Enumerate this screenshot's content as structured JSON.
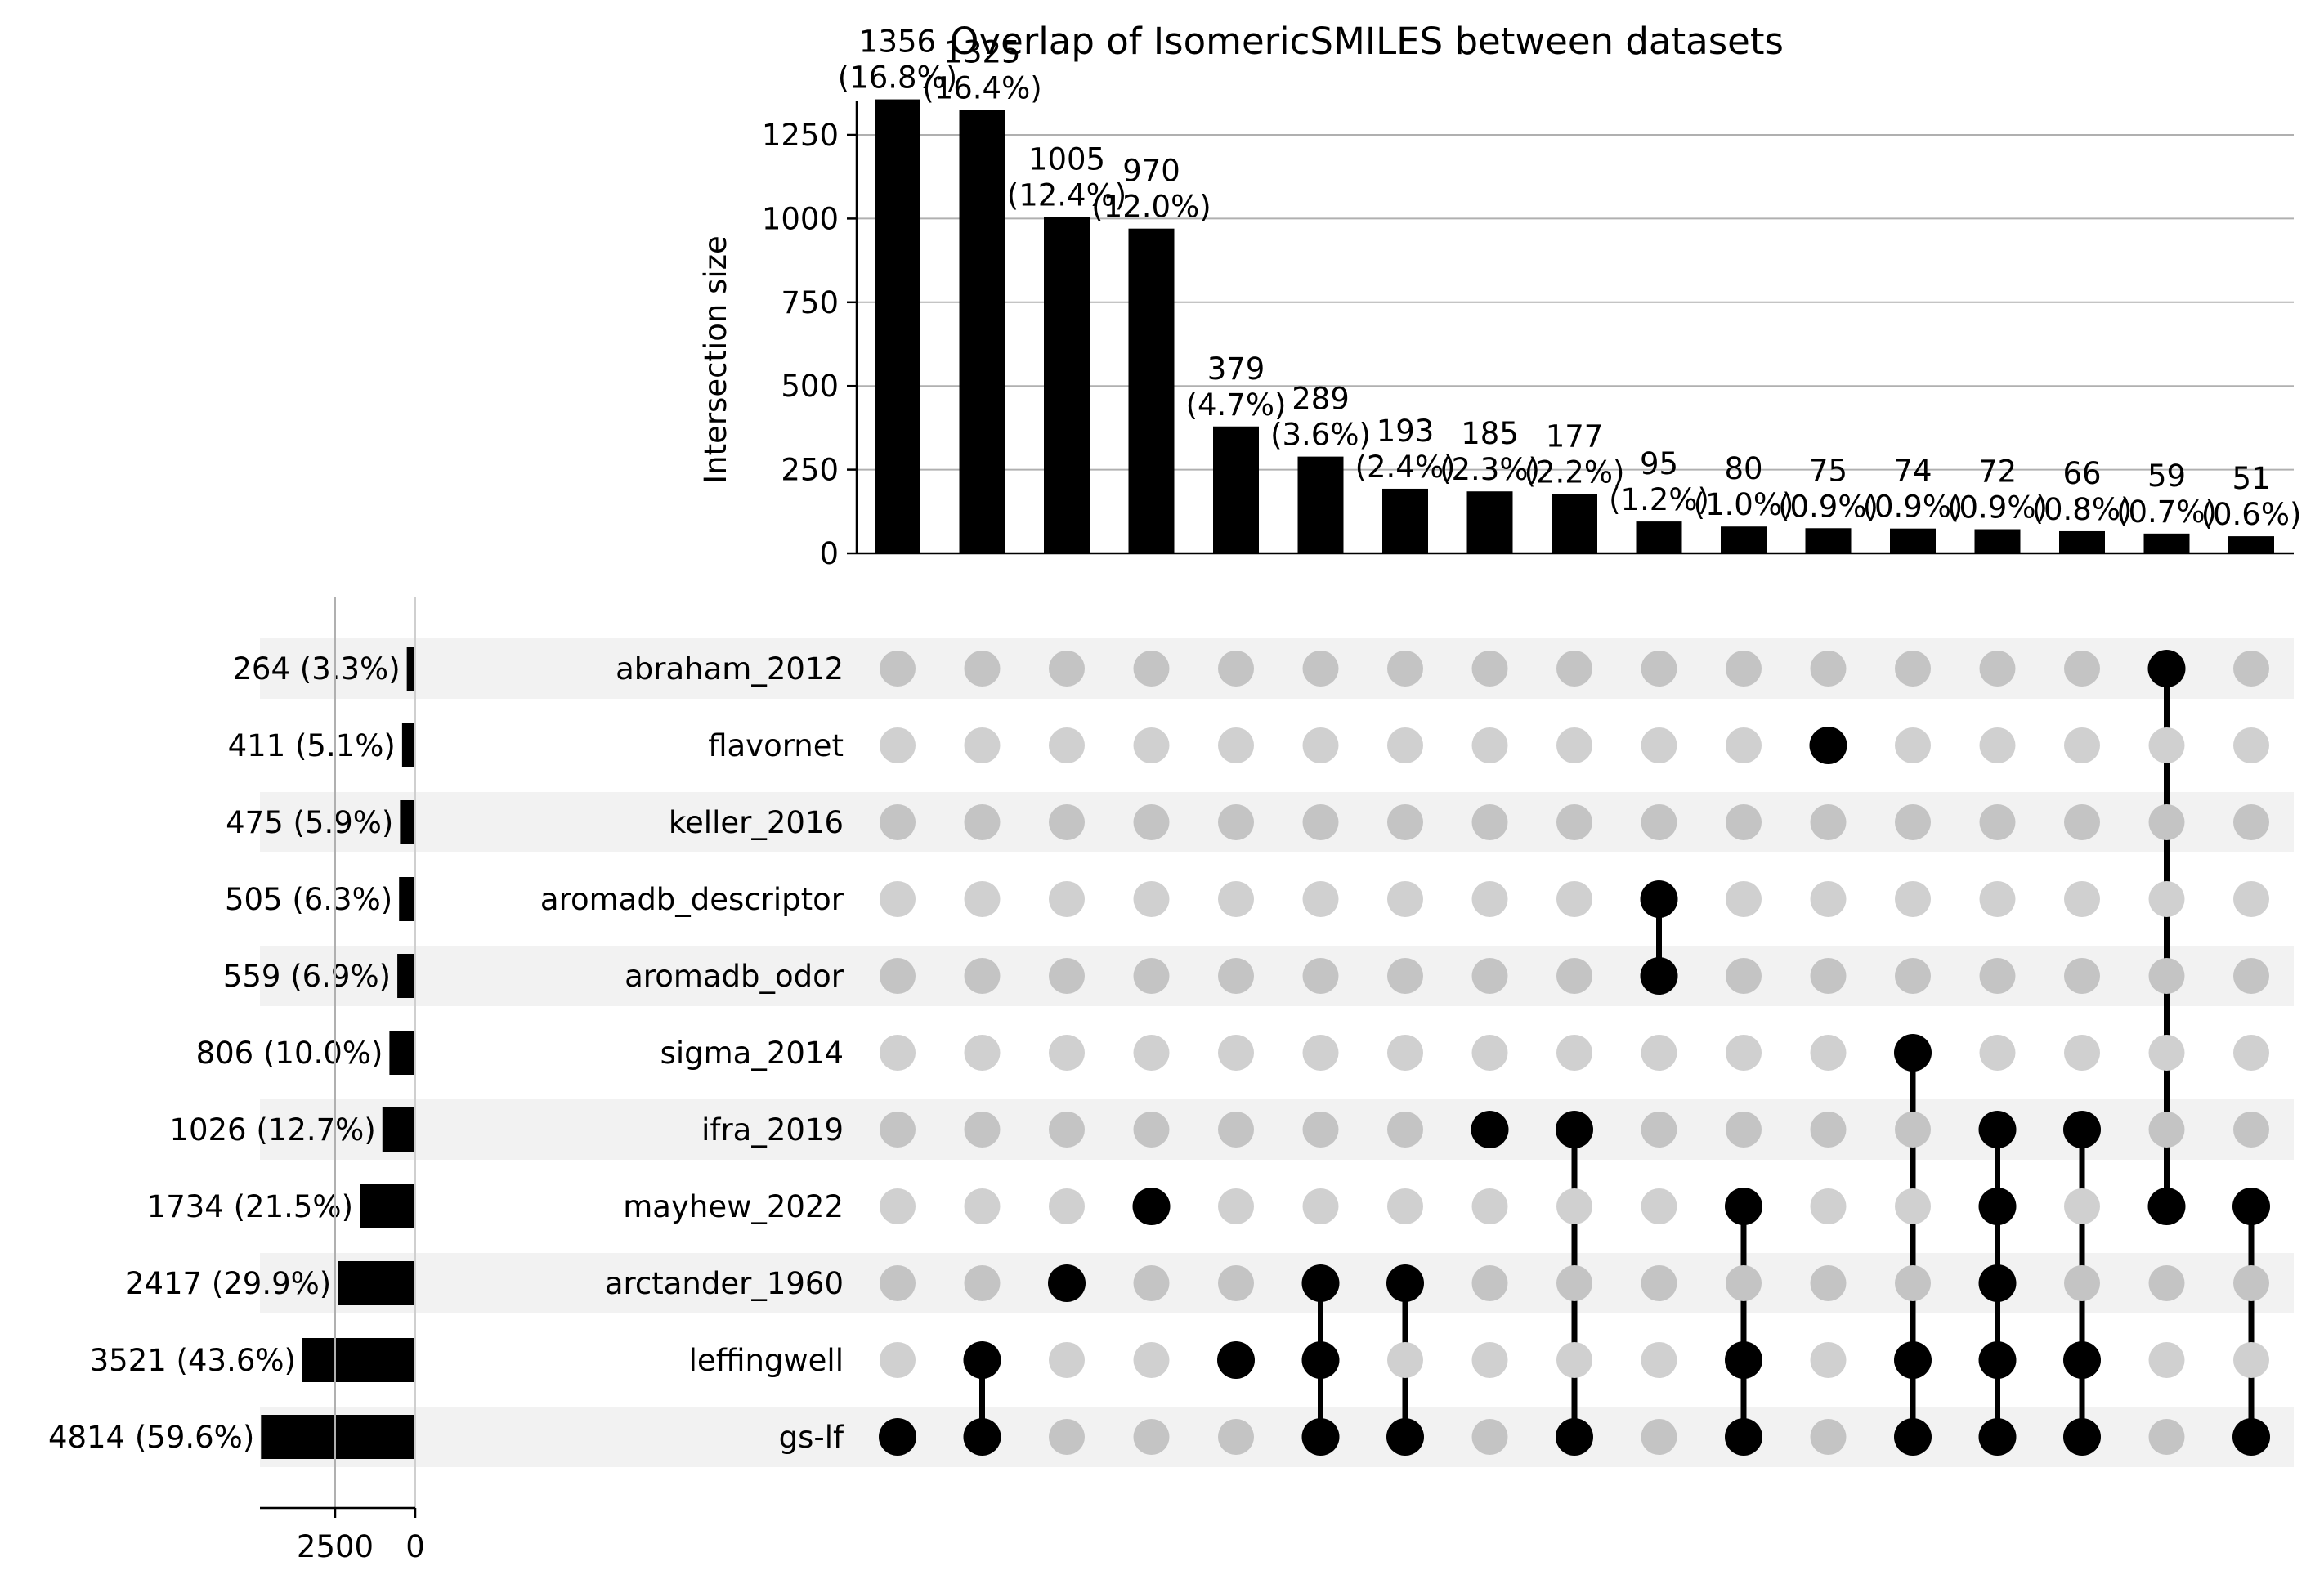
{
  "chart_data": {
    "type": "upset",
    "title": "Overlap of IsomericSMILES between datasets",
    "ylabel": "Intersection size",
    "ylim": [
      0,
      1400
    ],
    "yticks": [
      0,
      250,
      500,
      750,
      1000,
      1250
    ],
    "grid": true,
    "sets": [
      {
        "name": "abraham_2012",
        "total": 264,
        "label": "264 (3.3%)"
      },
      {
        "name": "flavornet",
        "total": 411,
        "label": "411 (5.1%)"
      },
      {
        "name": "keller_2016",
        "total": 475,
        "label": "475 (5.9%)"
      },
      {
        "name": "aromadb_descriptor",
        "total": 505,
        "label": "505 (6.3%)"
      },
      {
        "name": "aromadb_odor",
        "total": 559,
        "label": "559 (6.9%)"
      },
      {
        "name": "sigma_2014",
        "total": 806,
        "label": "806 (10.0%)"
      },
      {
        "name": "ifra_2019",
        "total": 1026,
        "label": "1026 (12.7%)"
      },
      {
        "name": "mayhew_2022",
        "total": 1734,
        "label": "1734 (21.5%)"
      },
      {
        "name": "arctander_1960",
        "total": 2417,
        "label": "2417 (29.9%)"
      },
      {
        "name": "leffingwell",
        "total": 3521,
        "label": "3521 (43.6%)"
      },
      {
        "name": "gs-lf",
        "total": 4814,
        "label": "4814 (59.6%)"
      }
    ],
    "totals_axis": {
      "ticks": [
        2500,
        0
      ],
      "tick_labels": [
        "2500",
        "0"
      ],
      "max": 5000
    },
    "intersections": [
      {
        "value": 1356,
        "label": "1356",
        "pct": "(16.8%)",
        "members": [
          "gs-lf"
        ]
      },
      {
        "value": 1325,
        "label": "1325",
        "pct": "(16.4%)",
        "members": [
          "leffingwell",
          "gs-lf"
        ]
      },
      {
        "value": 1005,
        "label": "1005",
        "pct": "(12.4%)",
        "members": [
          "arctander_1960"
        ]
      },
      {
        "value": 970,
        "label": "970",
        "pct": "(12.0%)",
        "members": [
          "mayhew_2022"
        ]
      },
      {
        "value": 379,
        "label": "379",
        "pct": "(4.7%)",
        "members": [
          "leffingwell"
        ]
      },
      {
        "value": 289,
        "label": "289",
        "pct": "(3.6%)",
        "members": [
          "arctander_1960",
          "leffingwell",
          "gs-lf"
        ]
      },
      {
        "value": 193,
        "label": "193",
        "pct": "(2.4%)",
        "members": [
          "arctander_1960",
          "gs-lf"
        ]
      },
      {
        "value": 185,
        "label": "185",
        "pct": "(2.3%)",
        "members": [
          "ifra_2019"
        ]
      },
      {
        "value": 177,
        "label": "177",
        "pct": "(2.2%)",
        "members": [
          "ifra_2019",
          "gs-lf"
        ]
      },
      {
        "value": 95,
        "label": "95",
        "pct": "(1.2%)",
        "members": [
          "aromadb_descriptor",
          "aromadb_odor"
        ]
      },
      {
        "value": 80,
        "label": "80",
        "pct": "(1.0%)",
        "members": [
          "mayhew_2022",
          "leffingwell",
          "gs-lf"
        ]
      },
      {
        "value": 75,
        "label": "75",
        "pct": "(0.9%)",
        "members": [
          "flavornet"
        ]
      },
      {
        "value": 74,
        "label": "74",
        "pct": "(0.9%)",
        "members": [
          "sigma_2014",
          "leffingwell",
          "gs-lf"
        ]
      },
      {
        "value": 72,
        "label": "72",
        "pct": "(0.9%)",
        "members": [
          "ifra_2019",
          "mayhew_2022",
          "arctander_1960",
          "leffingwell",
          "gs-lf"
        ]
      },
      {
        "value": 66,
        "label": "66",
        "pct": "(0.8%)",
        "members": [
          "ifra_2019",
          "leffingwell",
          "gs-lf"
        ]
      },
      {
        "value": 59,
        "label": "59",
        "pct": "(0.7%)",
        "members": [
          "abraham_2012",
          "mayhew_2022"
        ]
      },
      {
        "value": 51,
        "label": "51",
        "pct": "(0.6%)",
        "members": [
          "mayhew_2022",
          "gs-lf"
        ]
      }
    ],
    "colors": {
      "bar": "#000000",
      "dot_active": "#000000",
      "dot_inactive": "#cccccc",
      "row_shade": "#f2f2f2",
      "grid": "#b0b0b0",
      "axis": "#000000"
    }
  }
}
